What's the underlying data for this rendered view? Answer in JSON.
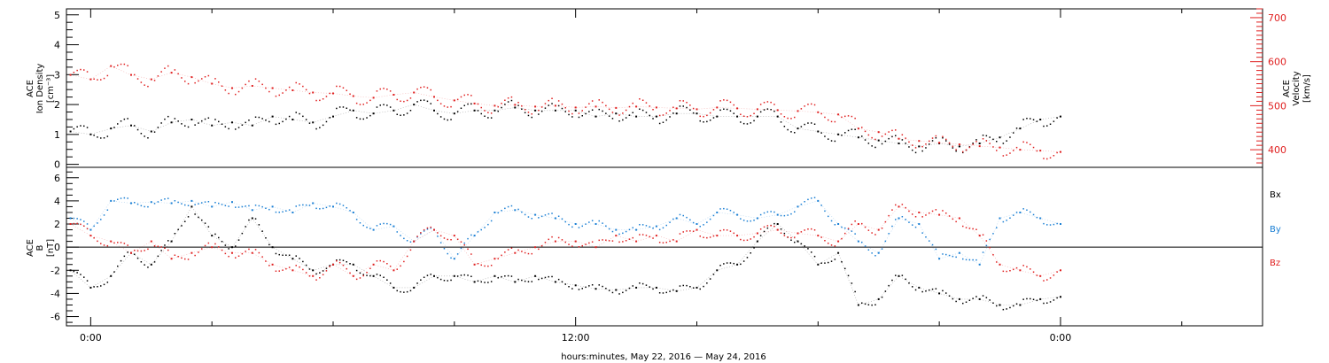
{
  "xlabel": "hours:minutes, May 22, 2016 — May 24, 2016",
  "x_ticks": [
    "0:00",
    "12:00",
    "0:00"
  ],
  "colors": {
    "black": "#000000",
    "red": "#e02020",
    "blue": "#1a7fd4"
  },
  "chart_data": [
    {
      "type": "scatter",
      "panel": "top",
      "ylabel_left": [
        "ACE",
        "Ion Density",
        "[cm⁻³]"
      ],
      "ylabel_right": [
        "ACE",
        "Velocity",
        "[km/s]"
      ],
      "left_ticks": [
        "0",
        "1",
        "2",
        "3",
        "4",
        "5"
      ],
      "right_ticks": [
        "400",
        "500",
        "600",
        "700"
      ],
      "ylim_left": [
        -0.1,
        5.2
      ],
      "ylim_right": [
        360,
        720
      ],
      "x_unit": "hours since May 22, 2016 00:00",
      "xlim": [
        -0.6,
        29
      ],
      "series": [
        {
          "name": "Ion Density",
          "axis": "left",
          "color": "#000000",
          "points": [
            [
              -0.5,
              1.1
            ],
            [
              0.0,
              1.0
            ],
            [
              0.5,
              1.2
            ],
            [
              1.0,
              1.3
            ],
            [
              1.5,
              1.1
            ],
            [
              2.0,
              1.4
            ],
            [
              2.5,
              1.5
            ],
            [
              3.0,
              1.3
            ],
            [
              3.5,
              1.4
            ],
            [
              4.0,
              1.3
            ],
            [
              4.5,
              1.6
            ],
            [
              5.0,
              1.5
            ],
            [
              5.5,
              1.4
            ],
            [
              6.0,
              1.6
            ],
            [
              6.5,
              1.8
            ],
            [
              7.0,
              1.7
            ],
            [
              7.5,
              1.8
            ],
            [
              8.0,
              2.0
            ],
            [
              8.5,
              1.8
            ],
            [
              9.0,
              1.7
            ],
            [
              9.5,
              1.8
            ],
            [
              10.0,
              1.8
            ],
            [
              10.5,
              1.9
            ],
            [
              11.0,
              1.8
            ],
            [
              11.5,
              1.8
            ],
            [
              12.0,
              1.8
            ],
            [
              12.5,
              1.6
            ],
            [
              13.0,
              1.7
            ],
            [
              13.5,
              1.6
            ],
            [
              14.0,
              1.6
            ],
            [
              14.5,
              1.7
            ],
            [
              15.0,
              1.7
            ],
            [
              15.5,
              1.6
            ],
            [
              16.0,
              1.6
            ],
            [
              16.5,
              1.6
            ],
            [
              17.0,
              1.6
            ],
            [
              17.5,
              1.2
            ],
            [
              18.0,
              1.1
            ],
            [
              18.5,
              1.0
            ],
            [
              19.0,
              0.9
            ],
            [
              19.5,
              0.8
            ],
            [
              20.0,
              0.7
            ],
            [
              20.5,
              0.6
            ],
            [
              21.0,
              0.7
            ],
            [
              21.5,
              0.6
            ],
            [
              22.0,
              0.7
            ],
            [
              22.5,
              0.9
            ],
            [
              23.0,
              1.2
            ],
            [
              23.5,
              1.5
            ],
            [
              24.0,
              1.6
            ]
          ]
        },
        {
          "name": "Velocity",
          "axis": "right",
          "color": "#e02020",
          "points": [
            [
              -0.5,
              570
            ],
            [
              0.0,
              560
            ],
            [
              0.5,
              590
            ],
            [
              1.0,
              570
            ],
            [
              1.5,
              560
            ],
            [
              2.0,
              575
            ],
            [
              2.5,
              565
            ],
            [
              3.0,
              550
            ],
            [
              3.5,
              540
            ],
            [
              4.0,
              545
            ],
            [
              4.5,
              540
            ],
            [
              5.0,
              535
            ],
            [
              5.5,
              530
            ],
            [
              6.0,
              528
            ],
            [
              6.5,
              522
            ],
            [
              7.0,
              518
            ],
            [
              7.5,
              525
            ],
            [
              8.0,
              530
            ],
            [
              8.5,
              520
            ],
            [
              9.0,
              512
            ],
            [
              9.5,
              505
            ],
            [
              10.0,
              500
            ],
            [
              10.5,
              502
            ],
            [
              11.0,
              498
            ],
            [
              11.5,
              500
            ],
            [
              12.0,
              496
            ],
            [
              12.5,
              498
            ],
            [
              13.0,
              495
            ],
            [
              13.5,
              498
            ],
            [
              14.0,
              496
            ],
            [
              14.5,
              494
            ],
            [
              15.0,
              492
            ],
            [
              15.5,
              496
            ],
            [
              16.0,
              494
            ],
            [
              16.5,
              492
            ],
            [
              17.0,
              490
            ],
            [
              17.5,
              488
            ],
            [
              18.0,
              485
            ],
            [
              18.5,
              480
            ],
            [
              19.0,
              448
            ],
            [
              19.5,
              440
            ],
            [
              20.0,
              425
            ],
            [
              20.5,
              420
            ],
            [
              21.0,
              416
            ],
            [
              21.5,
              412
            ],
            [
              22.0,
              408
            ],
            [
              22.5,
              405
            ],
            [
              23.0,
              400
            ],
            [
              23.5,
              398
            ],
            [
              24.0,
              395
            ]
          ]
        }
      ]
    },
    {
      "type": "scatter",
      "panel": "bottom",
      "ylabel_left": [
        "ACE",
        "B",
        "[nT]"
      ],
      "left_ticks": [
        "-6",
        "-4",
        "-2",
        "0",
        "2",
        "4",
        "6"
      ],
      "ylim": [
        -6.8,
        6.9
      ],
      "x_unit": "hours since May 22, 2016 00:00",
      "xlim": [
        -0.6,
        29
      ],
      "series": [
        {
          "name": "Bx",
          "color": "#000000",
          "points": [
            [
              -0.5,
              -2.0
            ],
            [
              0.0,
              -3.5
            ],
            [
              0.5,
              -2.5
            ],
            [
              1.0,
              -0.5
            ],
            [
              1.5,
              -1.5
            ],
            [
              2.0,
              0.5
            ],
            [
              2.5,
              3.5
            ],
            [
              3.0,
              1.0
            ],
            [
              3.5,
              0.0
            ],
            [
              4.0,
              2.5
            ],
            [
              4.5,
              0.0
            ],
            [
              5.0,
              -1.0
            ],
            [
              5.5,
              -2.0
            ],
            [
              6.0,
              -1.5
            ],
            [
              6.5,
              -1.5
            ],
            [
              7.0,
              -2.5
            ],
            [
              7.5,
              -3.5
            ],
            [
              8.0,
              -3.5
            ],
            [
              8.5,
              -2.5
            ],
            [
              9.0,
              -2.5
            ],
            [
              9.5,
              -3.0
            ],
            [
              10.0,
              -2.5
            ],
            [
              10.5,
              -3.0
            ],
            [
              11.0,
              -2.5
            ],
            [
              11.5,
              -3.0
            ],
            [
              12.0,
              -3.3
            ],
            [
              12.5,
              -3.6
            ],
            [
              13.0,
              -3.7
            ],
            [
              13.5,
              -3.5
            ],
            [
              14.0,
              -3.5
            ],
            [
              14.5,
              -3.8
            ],
            [
              15.0,
              -3.5
            ],
            [
              15.5,
              -2.0
            ],
            [
              16.0,
              -1.5
            ],
            [
              16.5,
              0.5
            ],
            [
              17.0,
              2.0
            ],
            [
              17.5,
              0.5
            ],
            [
              18.0,
              -1.5
            ],
            [
              18.5,
              -0.5
            ],
            [
              19.0,
              -5.0
            ],
            [
              19.5,
              -4.5
            ],
            [
              20.0,
              -2.5
            ],
            [
              20.5,
              -3.5
            ],
            [
              21.0,
              -4.0
            ],
            [
              21.5,
              -4.5
            ],
            [
              22.0,
              -4.5
            ],
            [
              22.5,
              -5.0
            ],
            [
              23.0,
              -5.0
            ],
            [
              23.5,
              -4.5
            ],
            [
              24.0,
              -4.3
            ]
          ]
        },
        {
          "name": "By",
          "color": "#1a7fd4",
          "points": [
            [
              -0.5,
              2.5
            ],
            [
              0.0,
              1.5
            ],
            [
              0.5,
              4.0
            ],
            [
              1.0,
              3.8
            ],
            [
              1.5,
              3.9
            ],
            [
              2.0,
              3.8
            ],
            [
              2.5,
              4.0
            ],
            [
              3.0,
              3.5
            ],
            [
              3.5,
              3.9
            ],
            [
              4.0,
              3.2
            ],
            [
              4.5,
              3.5
            ],
            [
              5.0,
              3.0
            ],
            [
              5.5,
              3.8
            ],
            [
              6.0,
              3.5
            ],
            [
              6.5,
              3.0
            ],
            [
              7.0,
              1.5
            ],
            [
              7.5,
              1.8
            ],
            [
              8.0,
              0.5
            ],
            [
              8.5,
              1.5
            ],
            [
              9.0,
              -1.0
            ],
            [
              9.5,
              1.0
            ],
            [
              10.0,
              3.0
            ],
            [
              10.5,
              3.2
            ],
            [
              11.0,
              2.8
            ],
            [
              11.5,
              2.5
            ],
            [
              12.0,
              2.0
            ],
            [
              12.5,
              2.0
            ],
            [
              13.0,
              1.5
            ],
            [
              13.5,
              1.5
            ],
            [
              14.0,
              1.8
            ],
            [
              14.5,
              2.5
            ],
            [
              15.0,
              2.0
            ],
            [
              15.5,
              3.0
            ],
            [
              16.0,
              2.8
            ],
            [
              16.5,
              2.5
            ],
            [
              17.0,
              2.8
            ],
            [
              17.5,
              3.5
            ],
            [
              18.0,
              4.0
            ],
            [
              18.5,
              2.0
            ],
            [
              19.0,
              0.5
            ],
            [
              19.5,
              -0.5
            ],
            [
              20.0,
              2.5
            ],
            [
              20.5,
              2.0
            ],
            [
              21.0,
              -1.0
            ],
            [
              21.5,
              -0.5
            ],
            [
              22.0,
              -1.5
            ],
            [
              22.5,
              2.5
            ],
            [
              23.0,
              3.0
            ],
            [
              23.5,
              2.5
            ],
            [
              24.0,
              2.0
            ]
          ]
        },
        {
          "name": "Bz",
          "color": "#e02020",
          "points": [
            [
              -0.5,
              2.0
            ],
            [
              0.0,
              1.0
            ],
            [
              0.5,
              0.5
            ],
            [
              1.0,
              -0.5
            ],
            [
              1.5,
              0.5
            ],
            [
              2.0,
              -1.0
            ],
            [
              2.5,
              -0.5
            ],
            [
              3.0,
              0.0
            ],
            [
              3.5,
              -0.5
            ],
            [
              4.0,
              -0.5
            ],
            [
              4.5,
              -1.5
            ],
            [
              5.0,
              -2.0
            ],
            [
              5.5,
              -2.5
            ],
            [
              6.0,
              -1.5
            ],
            [
              6.5,
              -2.5
            ],
            [
              7.0,
              -1.5
            ],
            [
              7.5,
              -2.0
            ],
            [
              8.0,
              0.5
            ],
            [
              8.5,
              1.5
            ],
            [
              9.0,
              1.0
            ],
            [
              9.5,
              -1.5
            ],
            [
              10.0,
              -1.0
            ],
            [
              10.5,
              -0.5
            ],
            [
              11.0,
              0.0
            ],
            [
              11.5,
              0.5
            ],
            [
              12.0,
              0.5
            ],
            [
              12.5,
              0.0
            ],
            [
              13.0,
              1.0
            ],
            [
              13.5,
              0.5
            ],
            [
              14.0,
              1.0
            ],
            [
              14.5,
              0.5
            ],
            [
              15.0,
              1.5
            ],
            [
              15.5,
              1.0
            ],
            [
              16.0,
              1.0
            ],
            [
              16.5,
              1.2
            ],
            [
              17.0,
              1.5
            ],
            [
              17.5,
              1.2
            ],
            [
              18.0,
              1.0
            ],
            [
              18.5,
              0.5
            ],
            [
              19.0,
              2.0
            ],
            [
              19.5,
              1.5
            ],
            [
              20.0,
              3.5
            ],
            [
              20.5,
              3.0
            ],
            [
              21.0,
              2.8
            ],
            [
              21.5,
              2.5
            ],
            [
              22.0,
              1.0
            ],
            [
              22.5,
              -1.5
            ],
            [
              23.0,
              -2.0
            ],
            [
              23.5,
              -2.5
            ],
            [
              24.0,
              -2.0
            ]
          ]
        }
      ]
    }
  ]
}
